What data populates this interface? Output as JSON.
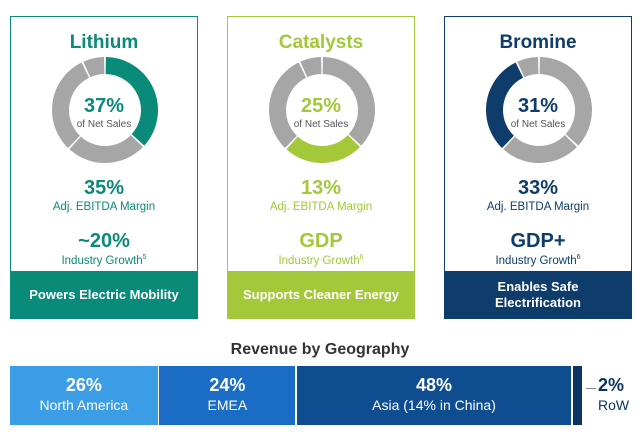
{
  "segments_order": [
    "Lithium",
    "Catalysts",
    "Bromine",
    "Other"
  ],
  "net_sales_split": [
    37,
    25,
    31,
    7
  ],
  "other_color": "#a6a6a6",
  "cards": [
    {
      "name": "Lithium",
      "color": "#0a8a78",
      "highlight": 0,
      "pct": "37%",
      "pct_label": "of Net Sales",
      "margin": "35%",
      "margin_label": "Adj. EBITDA Margin",
      "growth": "~20%",
      "growth_label": "Industry Growth",
      "growth_note": "5",
      "tagline": "Powers Electric Mobility"
    },
    {
      "name": "Catalysts",
      "color": "#a3c83a",
      "highlight": 1,
      "pct": "25%",
      "pct_label": "of Net Sales",
      "margin": "13%",
      "margin_label": "Adj. EBITDA Margin",
      "growth": "GDP",
      "growth_label": "Industry Growth",
      "growth_note": "6",
      "tagline": "Supports Cleaner Energy"
    },
    {
      "name": "Bromine",
      "color": "#0e3d6b",
      "highlight": 2,
      "pct": "31%",
      "pct_label": "of Net Sales",
      "margin": "33%",
      "margin_label": "Adj. EBITDA Margin",
      "growth": "GDP+",
      "growth_label": "Industry Growth",
      "growth_note": "6",
      "tagline": "Enables Safe Electrification"
    }
  ],
  "chart_data": {
    "type": "bar",
    "title": "Revenue by Geography",
    "categories": [
      "North America",
      "EMEA",
      "Asia (14% in China)",
      "RoW"
    ],
    "values": [
      26,
      24,
      48,
      2
    ],
    "labels": [
      "26%",
      "24%",
      "48%",
      "2%"
    ],
    "colors": [
      "#3a9de6",
      "#1a6cc4",
      "#0d4d90",
      "#0b3560"
    ]
  }
}
